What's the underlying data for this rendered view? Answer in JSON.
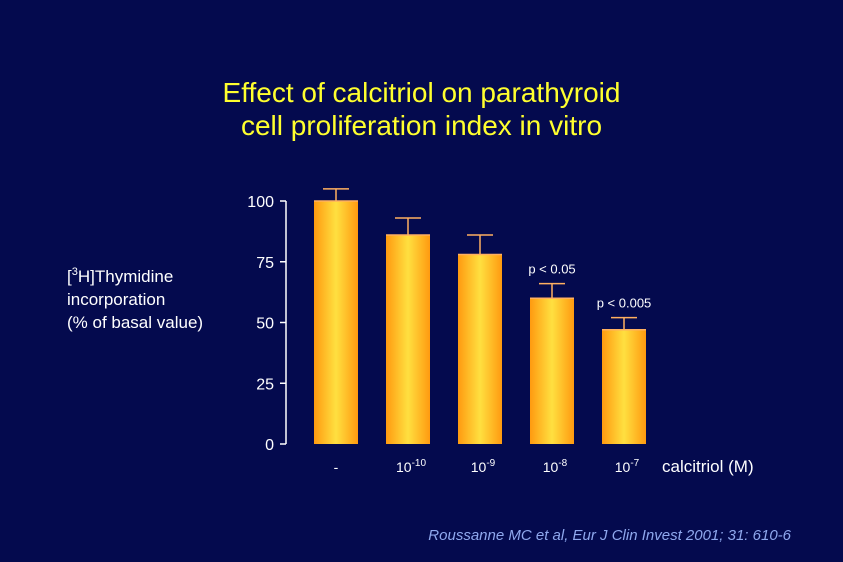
{
  "slide": {
    "title_line1": "Effect of calcitriol on parathyroid",
    "title_line2": "cell proliferation index in vitro",
    "citation": "Roussanne MC et al, Eur J Clin Invest 2001; 31: 610-6"
  },
  "chart_data": {
    "type": "bar",
    "title": "Effect of calcitriol on parathyroid cell proliferation index in vitro",
    "ylabel_prefix": "[",
    "ylabel_sup": "3",
    "ylabel_line1_rest": "H]Thymidine",
    "ylabel_line2": "incorporation",
    "ylabel_line3": "(% of basal value)",
    "xlabel": "calcitriol (M)",
    "ylim": [
      0,
      100
    ],
    "yticks": [
      0,
      25,
      50,
      75,
      100
    ],
    "categories": [
      {
        "base": "-",
        "exp": ""
      },
      {
        "base": "10",
        "exp": "-10"
      },
      {
        "base": "10",
        "exp": "-9"
      },
      {
        "base": "10",
        "exp": "-8"
      },
      {
        "base": "10",
        "exp": "-7"
      }
    ],
    "values": [
      100,
      86,
      78,
      60,
      47
    ],
    "errors": [
      5,
      7,
      8,
      6,
      5
    ],
    "annotations": [
      "",
      "",
      "",
      "p < 0.05",
      "p < 0.005"
    ],
    "colors": {
      "background": "#040a4e",
      "bar_edge": "#ff9a10",
      "bar_center": "#ffe040",
      "error_bar": "#ffb060",
      "title": "#ffff2e",
      "citation": "#8fa8ee"
    }
  }
}
